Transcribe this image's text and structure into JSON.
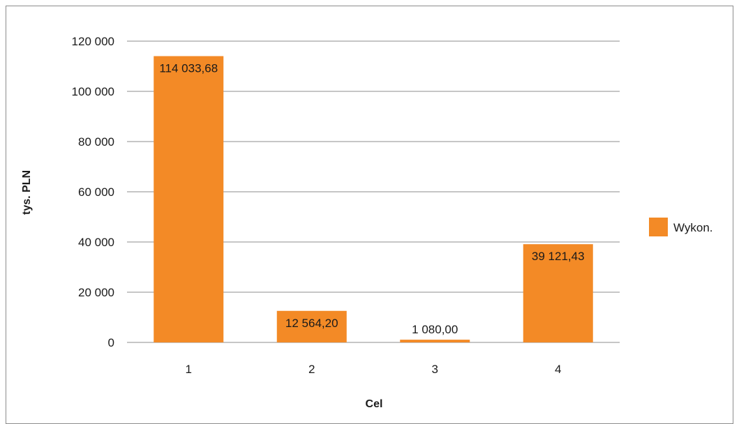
{
  "chart_data": {
    "type": "bar",
    "categories": [
      "1",
      "2",
      "3",
      "4"
    ],
    "series": [
      {
        "name": "Wykon.",
        "values": [
          114033.68,
          12564.2,
          1080.0,
          39121.43
        ],
        "labels": [
          "114 033,68",
          "12 564,20",
          "1 080,00",
          "39 121,43"
        ],
        "color": "#f38a26"
      }
    ],
    "xlabel": "Cel",
    "ylabel": "tys. PLN",
    "ylim": [
      0,
      120000
    ],
    "yticks": [
      0,
      20000,
      40000,
      60000,
      80000,
      100000,
      120000
    ],
    "ytick_labels": [
      "0",
      "20 000",
      "40 000",
      "60 000",
      "80 000",
      "100 000",
      "120 000"
    ],
    "grid": true,
    "legend_position": "right"
  },
  "colors": {
    "bar": "#f38a26",
    "gridline": "#8c8c8c",
    "frame": "#8c8c8c"
  }
}
